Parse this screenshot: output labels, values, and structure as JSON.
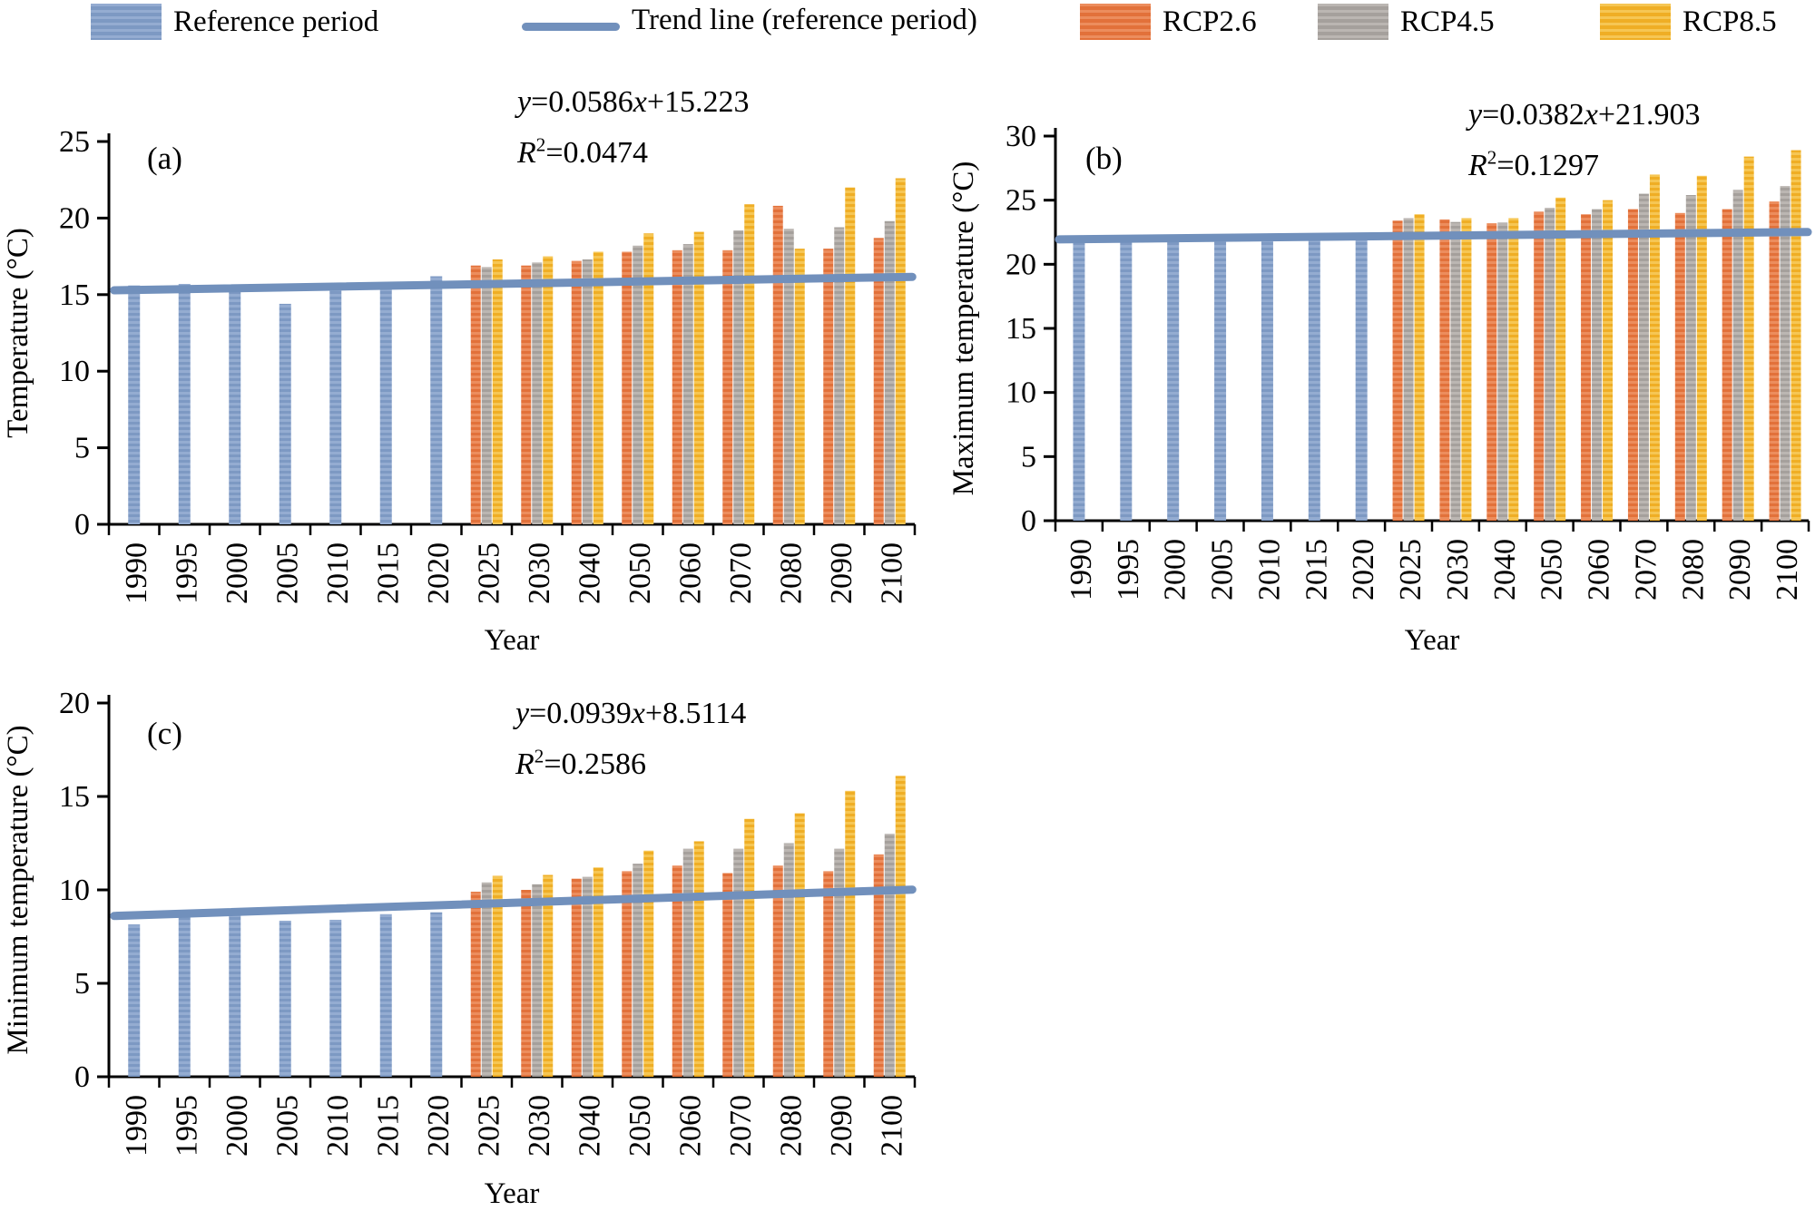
{
  "colors": {
    "blue": "#7d99c3",
    "blue_light": "#94acd1",
    "orange": "#e2713a",
    "orange_light": "#ec8d5d",
    "gray": "#a5a09c",
    "gray_light": "#bbb6b2",
    "yellow": "#efae25",
    "yellow_light": "#f6c654",
    "trend": "#7190bc",
    "axis": "#000000"
  },
  "legend": {
    "items": [
      {
        "label": "Reference period",
        "swatch": "bar",
        "color_key": "blue"
      },
      {
        "label": "Trend line (reference period)",
        "swatch": "line",
        "color_key": "trend"
      },
      {
        "label": "RCP2.6",
        "swatch": "bar",
        "color_key": "orange"
      },
      {
        "label": "RCP4.5",
        "swatch": "bar",
        "color_key": "gray"
      },
      {
        "label": "RCP8.5",
        "swatch": "bar",
        "color_key": "yellow"
      }
    ]
  },
  "chart_data": [
    {
      "id": "a",
      "panel_label": "(a)",
      "type": "bar",
      "ylabel": "Temperature (°C)",
      "xlabel": "Year",
      "ylim": [
        0,
        25
      ],
      "ytick_step": 5,
      "grid": false,
      "legend_position": "top",
      "categories": [
        "1990",
        "1995",
        "2000",
        "2005",
        "2010",
        "2015",
        "2020",
        "2025",
        "2030",
        "2040",
        "2050",
        "2060",
        "2070",
        "2080",
        "2090",
        "2100"
      ],
      "series": [
        {
          "name": "Reference period",
          "key": "reference",
          "color_key": "blue",
          "values": [
            15.6,
            15.7,
            15.3,
            14.4,
            15.3,
            15.5,
            16.2,
            null,
            null,
            null,
            null,
            null,
            null,
            null,
            null,
            null
          ]
        },
        {
          "name": "RCP2.6",
          "key": "rcp26",
          "color_key": "orange",
          "values": [
            null,
            null,
            null,
            null,
            null,
            null,
            null,
            16.9,
            16.9,
            17.2,
            17.8,
            17.9,
            17.9,
            20.8,
            18.0,
            18.7
          ]
        },
        {
          "name": "RCP4.5",
          "key": "rcp45",
          "color_key": "gray",
          "values": [
            null,
            null,
            null,
            null,
            null,
            null,
            null,
            16.8,
            17.1,
            17.3,
            18.2,
            18.3,
            19.2,
            19.3,
            19.4,
            19.8
          ]
        },
        {
          "name": "RCP8.5",
          "key": "rcp85",
          "color_key": "yellow",
          "values": [
            null,
            null,
            null,
            null,
            null,
            null,
            null,
            17.3,
            17.5,
            17.8,
            19.0,
            19.1,
            20.9,
            18.0,
            22.0,
            22.6
          ]
        }
      ],
      "trend_line": {
        "name": "Trend line (reference period)",
        "color_key": "trend"
      },
      "equation": {
        "slope": "0.0586",
        "intercept": "+15.223",
        "r2": "0.0474"
      }
    },
    {
      "id": "b",
      "panel_label": "(b)",
      "type": "bar",
      "ylabel": "Maximum temperature (°C)",
      "xlabel": "Year",
      "ylim": [
        0,
        30
      ],
      "ytick_step": 5,
      "grid": false,
      "legend_position": "top",
      "categories": [
        "1990",
        "1995",
        "2000",
        "2005",
        "2010",
        "2015",
        "2020",
        "2025",
        "2030",
        "2040",
        "2050",
        "2060",
        "2070",
        "2080",
        "2090",
        "2100"
      ],
      "series": [
        {
          "name": "Reference period",
          "key": "reference",
          "color_key": "blue",
          "values": [
            21.8,
            22.1,
            21.95,
            21.95,
            22.0,
            22.25,
            22.0,
            null,
            null,
            null,
            null,
            null,
            null,
            null,
            null,
            null
          ]
        },
        {
          "name": "RCP2.6",
          "key": "rcp26",
          "color_key": "orange",
          "values": [
            null,
            null,
            null,
            null,
            null,
            null,
            null,
            23.4,
            23.5,
            23.2,
            24.1,
            23.9,
            24.3,
            24.0,
            24.3,
            24.9
          ]
        },
        {
          "name": "RCP4.5",
          "key": "rcp45",
          "color_key": "gray",
          "values": [
            null,
            null,
            null,
            null,
            null,
            null,
            null,
            23.6,
            23.3,
            23.25,
            24.4,
            24.3,
            25.5,
            25.4,
            25.8,
            26.1
          ]
        },
        {
          "name": "RCP8.5",
          "key": "rcp85",
          "color_key": "yellow",
          "values": [
            null,
            null,
            null,
            null,
            null,
            null,
            null,
            23.9,
            23.6,
            23.6,
            25.2,
            25.0,
            27.0,
            26.9,
            28.4,
            28.9
          ]
        }
      ],
      "trend_line": {
        "name": "Trend line (reference period)",
        "color_key": "trend"
      },
      "equation": {
        "slope": "0.0382",
        "intercept": "+21.903",
        "r2": "0.1297"
      }
    },
    {
      "id": "c",
      "panel_label": "(c)",
      "type": "bar",
      "ylabel": "Minimum temperature (°C)",
      "xlabel": "Year",
      "ylim": [
        0,
        20
      ],
      "ytick_step": 5,
      "grid": false,
      "legend_position": "top",
      "categories": [
        "1990",
        "1995",
        "2000",
        "2005",
        "2010",
        "2015",
        "2020",
        "2025",
        "2030",
        "2040",
        "2050",
        "2060",
        "2070",
        "2080",
        "2090",
        "2100"
      ],
      "series": [
        {
          "name": "Reference period",
          "key": "reference",
          "color_key": "blue",
          "values": [
            8.15,
            8.7,
            8.95,
            8.35,
            8.4,
            8.7,
            8.8,
            null,
            null,
            null,
            null,
            null,
            null,
            null,
            null,
            null
          ]
        },
        {
          "name": "RCP2.6",
          "key": "rcp26",
          "color_key": "orange",
          "values": [
            null,
            null,
            null,
            null,
            null,
            null,
            null,
            9.9,
            10.0,
            10.6,
            11.0,
            11.3,
            10.9,
            11.3,
            11.0,
            11.9
          ]
        },
        {
          "name": "RCP4.5",
          "key": "rcp45",
          "color_key": "gray",
          "values": [
            null,
            null,
            null,
            null,
            null,
            null,
            null,
            10.4,
            10.3,
            10.7,
            11.4,
            12.2,
            12.2,
            12.5,
            12.2,
            13.0
          ]
        },
        {
          "name": "RCP8.5",
          "key": "rcp85",
          "color_key": "yellow",
          "values": [
            null,
            null,
            null,
            null,
            null,
            null,
            null,
            10.75,
            10.8,
            11.2,
            12.1,
            12.6,
            13.8,
            14.1,
            15.3,
            16.1
          ]
        }
      ],
      "trend_line": {
        "name": "Trend line (reference period)",
        "color_key": "trend"
      },
      "equation": {
        "slope": "0.0939",
        "intercept": "+8.5114",
        "r2": "0.2586"
      }
    }
  ]
}
